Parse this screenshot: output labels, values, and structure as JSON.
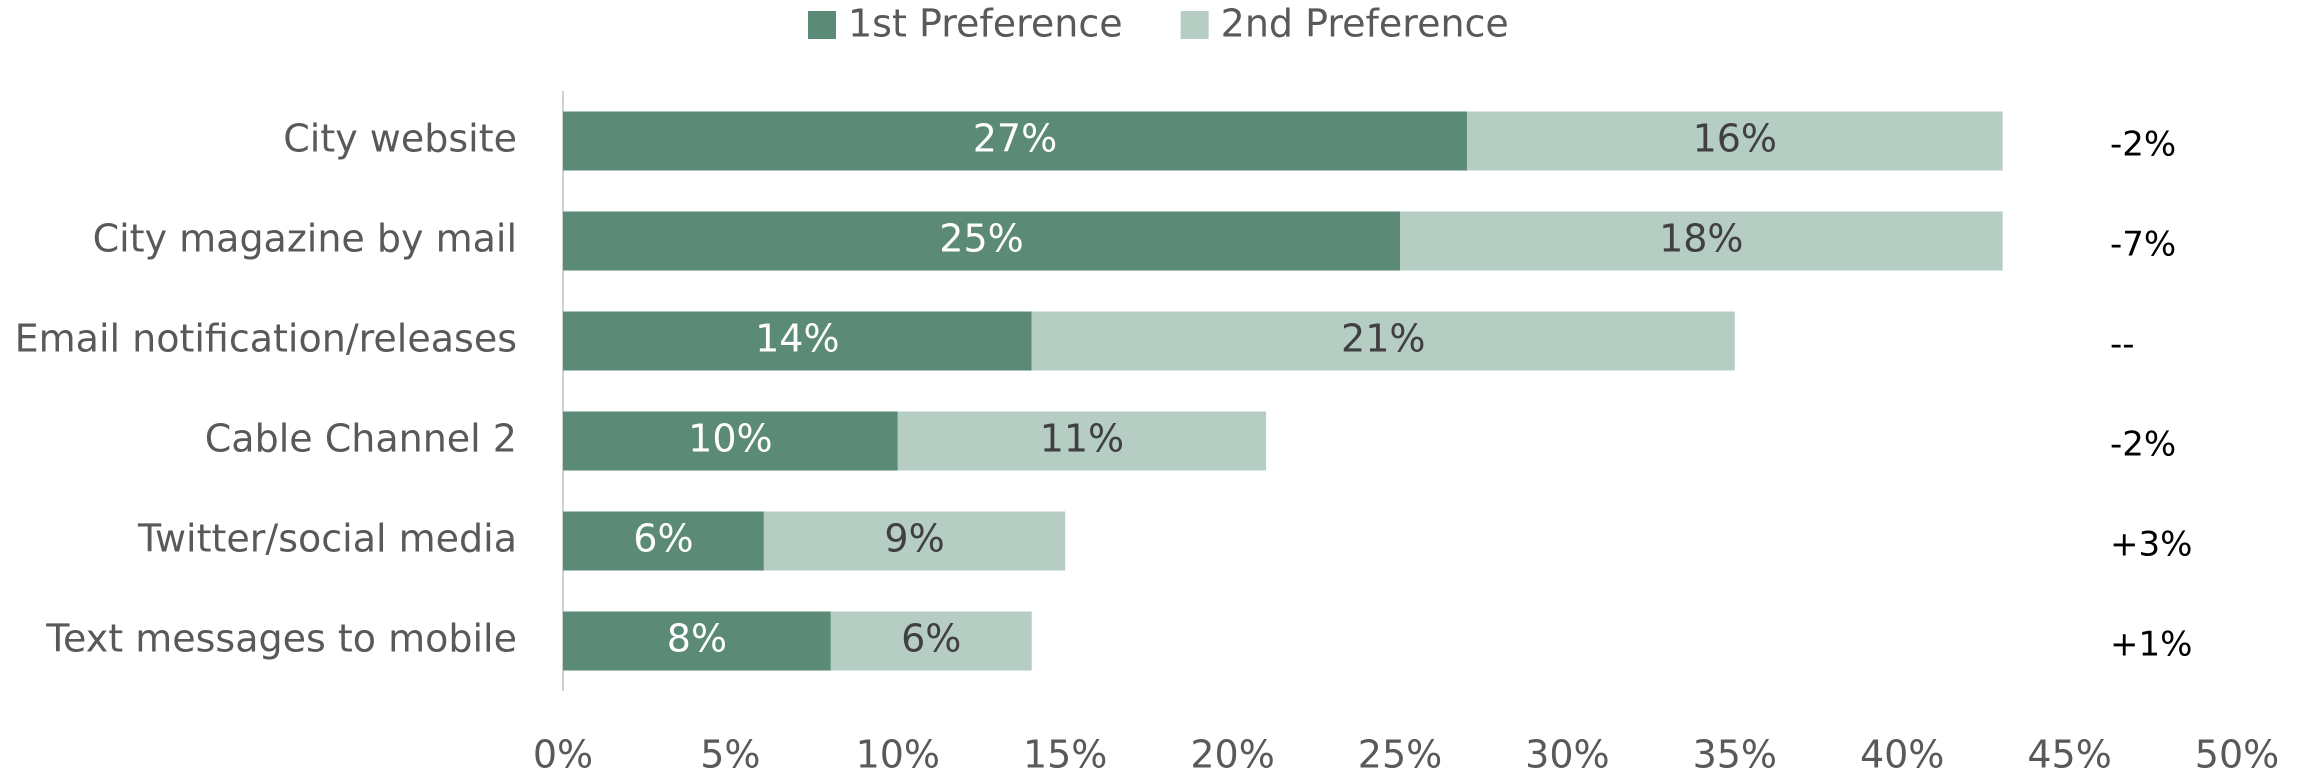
{
  "chart_data": {
    "type": "stacked-barh",
    "categories": [
      "City website",
      "City magazine by mail",
      "Email notification/releases",
      "Cable Channel 2",
      "Twitter/social media",
      "Text messages to mobile"
    ],
    "series": [
      {
        "name": "1st Preference",
        "color": "#5b8a76",
        "values": [
          27,
          25,
          14,
          10,
          6,
          8
        ],
        "value_labels": [
          "27%",
          "25%",
          "14%",
          "10%",
          "6%",
          "8%"
        ]
      },
      {
        "name": "2nd Preference",
        "color": "#b5cdc3",
        "values": [
          16,
          18,
          21,
          11,
          9,
          6
        ],
        "value_labels": [
          "16%",
          "18%",
          "21%",
          "11%",
          "9%",
          "6%"
        ]
      }
    ],
    "changes": [
      "-2%",
      "-7%",
      "--",
      "-2%",
      "+3%",
      "+1%"
    ],
    "xlim": [
      0,
      50
    ],
    "xticks": [
      {
        "value": 0,
        "label": "0%"
      },
      {
        "value": 5,
        "label": "5%"
      },
      {
        "value": 10,
        "label": "10%"
      },
      {
        "value": 15,
        "label": "15%"
      },
      {
        "value": 20,
        "label": "20%"
      },
      {
        "value": 25,
        "label": "25%"
      },
      {
        "value": 30,
        "label": "30%"
      },
      {
        "value": 35,
        "label": "35%"
      },
      {
        "value": 40,
        "label": "40%"
      },
      {
        "value": 45,
        "label": "45%"
      },
      {
        "value": 50,
        "label": "50%"
      }
    ],
    "legend": "top"
  }
}
